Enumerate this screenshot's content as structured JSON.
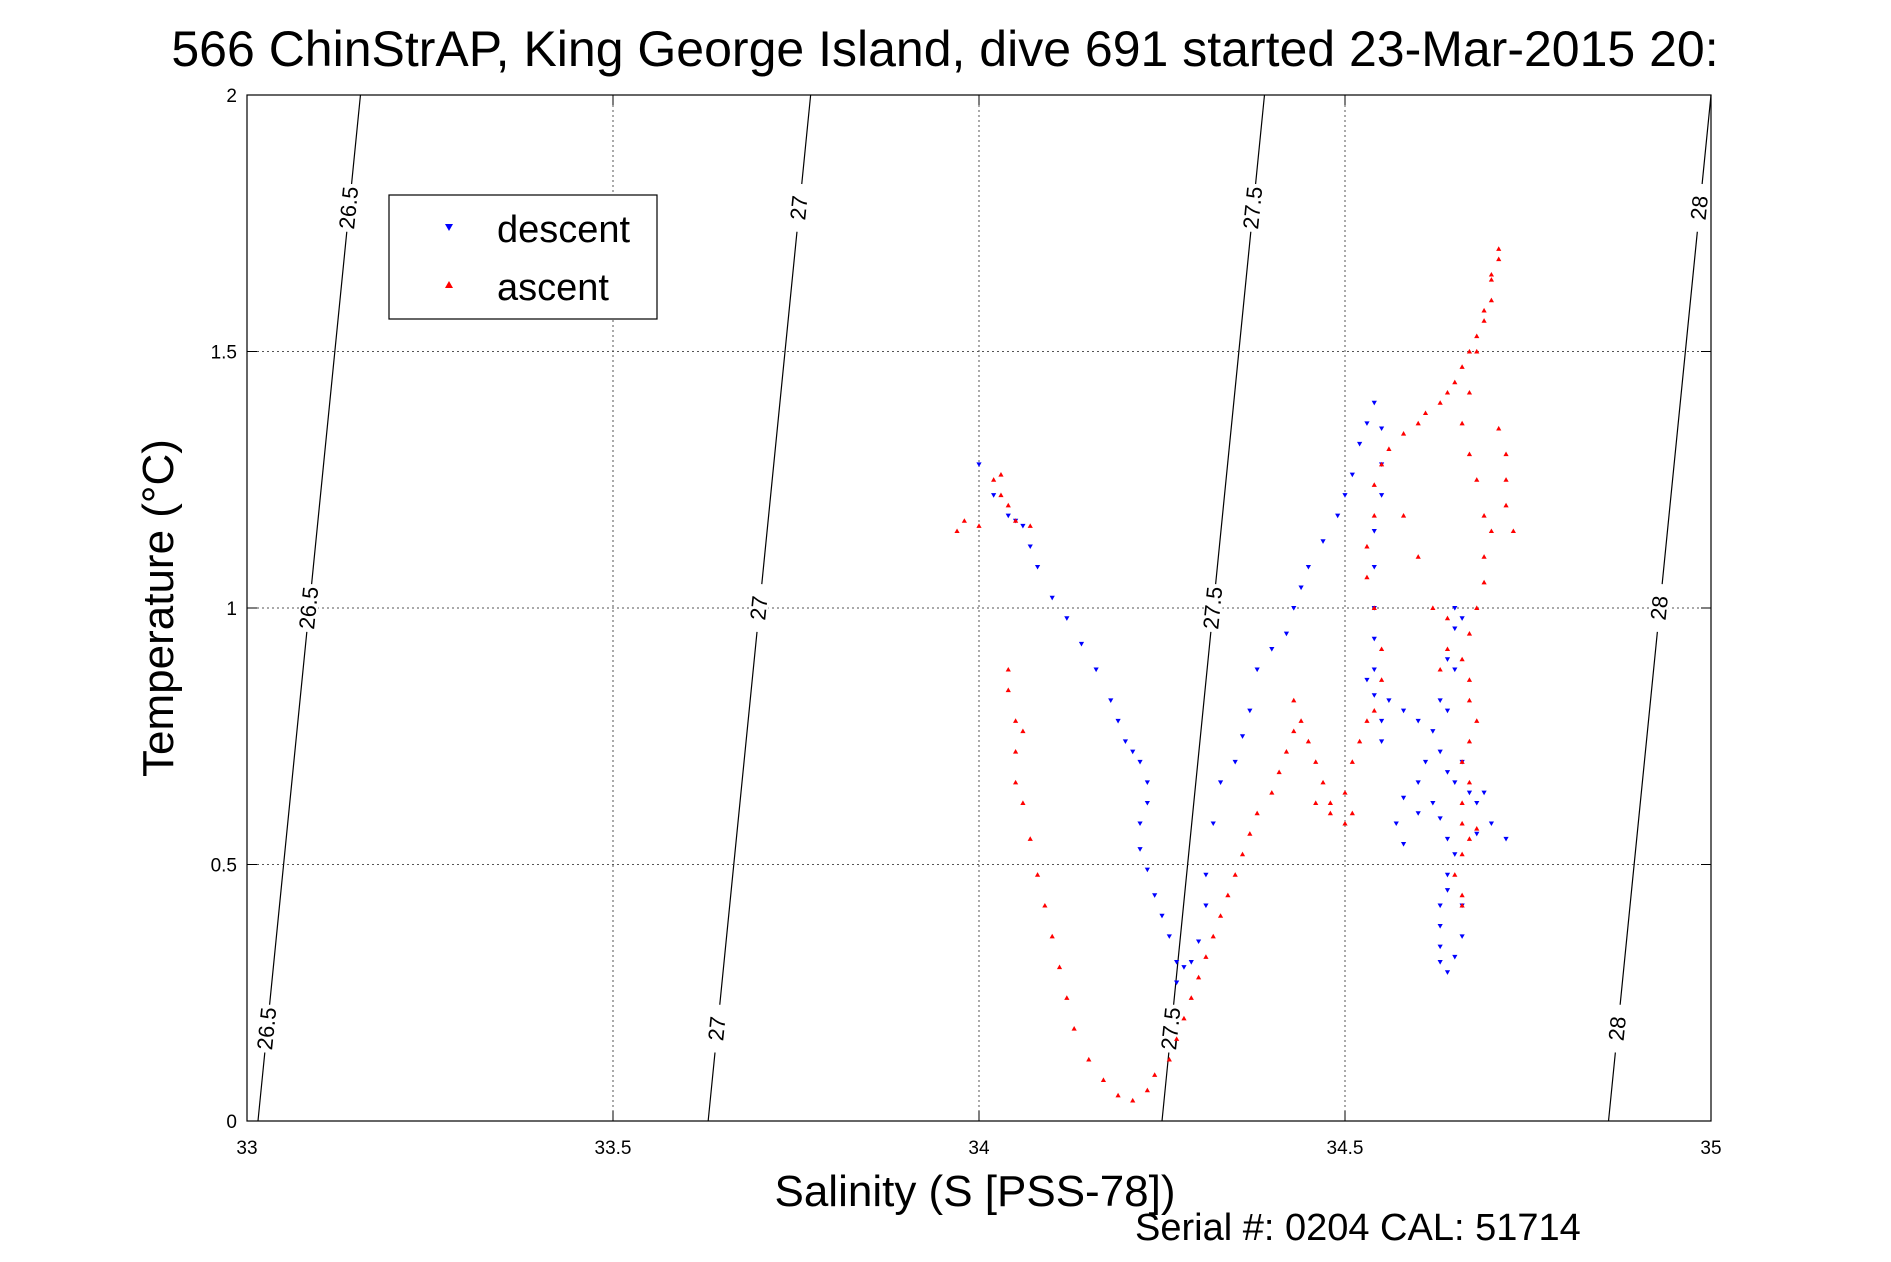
{
  "chart_data": {
    "type": "scatter",
    "title": "566 ChinStrAP, King George Island, dive 691 started 23-Mar-2015 20:",
    "xlabel": "Salinity (S [PSS-78])",
    "ylabel": "Temperature (°C)",
    "xlim": [
      33,
      35
    ],
    "ylim": [
      0,
      2
    ],
    "x_ticks": [
      "33",
      "33.5",
      "34",
      "34.5",
      "35"
    ],
    "y_ticks": [
      "0",
      "0.5",
      "1",
      "1.5",
      "2"
    ],
    "grid": true,
    "legend_position": "top-left",
    "footer": "Serial #: 0204  CAL: 51714",
    "density_contours": [
      {
        "label": "26.5",
        "x_at_t0": 33.015,
        "x_at_t2": 33.155
      },
      {
        "label": "27",
        "x_at_t0": 33.63,
        "x_at_t2": 33.77
      },
      {
        "label": "27.5",
        "x_at_t0": 34.25,
        "x_at_t2": 34.39
      },
      {
        "label": "28",
        "x_at_t0": 34.86,
        "x_at_t2": 35.0
      }
    ],
    "series": [
      {
        "name": "descent",
        "color": "#0000ff",
        "marker": "triangle-down",
        "points": [
          [
            34.0,
            1.28
          ],
          [
            34.02,
            1.22
          ],
          [
            34.04,
            1.18
          ],
          [
            34.05,
            1.17
          ],
          [
            34.06,
            1.16
          ],
          [
            34.07,
            1.12
          ],
          [
            34.08,
            1.08
          ],
          [
            34.1,
            1.02
          ],
          [
            34.12,
            0.98
          ],
          [
            34.14,
            0.93
          ],
          [
            34.16,
            0.88
          ],
          [
            34.18,
            0.82
          ],
          [
            34.19,
            0.78
          ],
          [
            34.2,
            0.74
          ],
          [
            34.21,
            0.72
          ],
          [
            34.22,
            0.7
          ],
          [
            34.23,
            0.66
          ],
          [
            34.23,
            0.62
          ],
          [
            34.22,
            0.58
          ],
          [
            34.22,
            0.53
          ],
          [
            34.23,
            0.49
          ],
          [
            34.24,
            0.44
          ],
          [
            34.25,
            0.4
          ],
          [
            34.26,
            0.36
          ],
          [
            34.27,
            0.31
          ],
          [
            34.27,
            0.27
          ],
          [
            34.28,
            0.3
          ],
          [
            34.29,
            0.31
          ],
          [
            34.3,
            0.35
          ],
          [
            34.31,
            0.42
          ],
          [
            34.31,
            0.48
          ],
          [
            34.32,
            0.58
          ],
          [
            34.33,
            0.66
          ],
          [
            34.35,
            0.7
          ],
          [
            34.36,
            0.75
          ],
          [
            34.37,
            0.8
          ],
          [
            34.38,
            0.88
          ],
          [
            34.4,
            0.92
          ],
          [
            34.42,
            0.95
          ],
          [
            34.43,
            1.0
          ],
          [
            34.44,
            1.04
          ],
          [
            34.45,
            1.08
          ],
          [
            34.47,
            1.13
          ],
          [
            34.49,
            1.18
          ],
          [
            34.5,
            1.22
          ],
          [
            34.51,
            1.26
          ],
          [
            34.52,
            1.32
          ],
          [
            34.53,
            1.36
          ],
          [
            34.54,
            1.4
          ],
          [
            34.55,
            1.35
          ],
          [
            34.55,
            1.28
          ],
          [
            34.55,
            1.22
          ],
          [
            34.54,
            1.15
          ],
          [
            34.54,
            1.08
          ],
          [
            34.54,
            1.0
          ],
          [
            34.54,
            0.94
          ],
          [
            34.54,
            0.88
          ],
          [
            34.54,
            0.83
          ],
          [
            34.55,
            0.78
          ],
          [
            34.55,
            0.74
          ],
          [
            34.53,
            0.86
          ],
          [
            34.56,
            0.82
          ],
          [
            34.58,
            0.8
          ],
          [
            34.6,
            0.78
          ],
          [
            34.62,
            0.76
          ],
          [
            34.63,
            0.82
          ],
          [
            34.64,
            0.9
          ],
          [
            34.65,
            0.96
          ],
          [
            34.65,
            1.0
          ],
          [
            34.66,
            0.98
          ],
          [
            34.65,
            0.88
          ],
          [
            34.64,
            0.8
          ],
          [
            34.63,
            0.72
          ],
          [
            34.64,
            0.68
          ],
          [
            34.65,
            0.66
          ],
          [
            34.6,
            0.66
          ],
          [
            34.58,
            0.63
          ],
          [
            34.57,
            0.58
          ],
          [
            34.58,
            0.54
          ],
          [
            34.6,
            0.6
          ],
          [
            34.62,
            0.62
          ],
          [
            34.63,
            0.59
          ],
          [
            34.64,
            0.55
          ],
          [
            34.65,
            0.52
          ],
          [
            34.64,
            0.48
          ],
          [
            34.64,
            0.45
          ],
          [
            34.63,
            0.42
          ],
          [
            34.63,
            0.38
          ],
          [
            34.63,
            0.34
          ],
          [
            34.63,
            0.31
          ],
          [
            34.64,
            0.29
          ],
          [
            34.65,
            0.32
          ],
          [
            34.66,
            0.36
          ],
          [
            34.66,
            0.42
          ],
          [
            34.68,
            0.56
          ],
          [
            34.7,
            0.58
          ],
          [
            34.72,
            0.55
          ],
          [
            34.61,
            0.7
          ],
          [
            34.66,
            0.7
          ],
          [
            34.67,
            0.64
          ],
          [
            34.68,
            0.62
          ],
          [
            34.69,
            0.64
          ]
        ]
      },
      {
        "name": "ascent",
        "color": "#ff0000",
        "marker": "triangle-up",
        "points": [
          [
            33.97,
            1.15
          ],
          [
            33.98,
            1.17
          ],
          [
            34.0,
            1.16
          ],
          [
            34.02,
            1.25
          ],
          [
            34.03,
            1.26
          ],
          [
            34.03,
            1.22
          ],
          [
            34.04,
            1.2
          ],
          [
            34.05,
            1.17
          ],
          [
            34.07,
            1.16
          ],
          [
            34.04,
            0.88
          ],
          [
            34.04,
            0.84
          ],
          [
            34.05,
            0.78
          ],
          [
            34.05,
            0.72
          ],
          [
            34.06,
            0.76
          ],
          [
            34.05,
            0.66
          ],
          [
            34.06,
            0.62
          ],
          [
            34.07,
            0.55
          ],
          [
            34.08,
            0.48
          ],
          [
            34.09,
            0.42
          ],
          [
            34.1,
            0.36
          ],
          [
            34.11,
            0.3
          ],
          [
            34.12,
            0.24
          ],
          [
            34.13,
            0.18
          ],
          [
            34.15,
            0.12
          ],
          [
            34.17,
            0.08
          ],
          [
            34.19,
            0.05
          ],
          [
            34.21,
            0.04
          ],
          [
            34.23,
            0.06
          ],
          [
            34.24,
            0.09
          ],
          [
            34.26,
            0.12
          ],
          [
            34.27,
            0.16
          ],
          [
            34.28,
            0.2
          ],
          [
            34.29,
            0.24
          ],
          [
            34.3,
            0.28
          ],
          [
            34.31,
            0.32
          ],
          [
            34.32,
            0.36
          ],
          [
            34.33,
            0.4
          ],
          [
            34.34,
            0.44
          ],
          [
            34.35,
            0.48
          ],
          [
            34.36,
            0.52
          ],
          [
            34.37,
            0.56
          ],
          [
            34.38,
            0.6
          ],
          [
            34.4,
            0.64
          ],
          [
            34.41,
            0.68
          ],
          [
            34.42,
            0.72
          ],
          [
            34.43,
            0.76
          ],
          [
            34.43,
            0.82
          ],
          [
            34.44,
            0.78
          ],
          [
            34.45,
            0.74
          ],
          [
            34.46,
            0.7
          ],
          [
            34.47,
            0.66
          ],
          [
            34.48,
            0.62
          ],
          [
            34.46,
            0.62
          ],
          [
            34.48,
            0.6
          ],
          [
            34.5,
            0.58
          ],
          [
            34.51,
            0.6
          ],
          [
            34.5,
            0.64
          ],
          [
            34.51,
            0.7
          ],
          [
            34.52,
            0.74
          ],
          [
            34.53,
            0.78
          ],
          [
            34.54,
            0.8
          ],
          [
            34.55,
            0.86
          ],
          [
            34.55,
            0.92
          ],
          [
            34.54,
            1.0
          ],
          [
            34.53,
            1.06
          ],
          [
            34.53,
            1.12
          ],
          [
            34.54,
            1.18
          ],
          [
            34.54,
            1.24
          ],
          [
            34.55,
            1.28
          ],
          [
            34.56,
            1.31
          ],
          [
            34.58,
            1.34
          ],
          [
            34.6,
            1.36
          ],
          [
            34.61,
            1.38
          ],
          [
            34.63,
            1.4
          ],
          [
            34.64,
            1.42
          ],
          [
            34.65,
            1.44
          ],
          [
            34.66,
            1.47
          ],
          [
            34.67,
            1.5
          ],
          [
            34.68,
            1.53
          ],
          [
            34.69,
            1.56
          ],
          [
            34.7,
            1.6
          ],
          [
            34.7,
            1.64
          ],
          [
            34.71,
            1.68
          ],
          [
            34.71,
            1.7
          ],
          [
            34.7,
            1.65
          ],
          [
            34.69,
            1.58
          ],
          [
            34.68,
            1.5
          ],
          [
            34.67,
            1.42
          ],
          [
            34.66,
            1.36
          ],
          [
            34.67,
            1.3
          ],
          [
            34.68,
            1.25
          ],
          [
            34.69,
            1.18
          ],
          [
            34.7,
            1.15
          ],
          [
            34.69,
            1.1
          ],
          [
            34.69,
            1.05
          ],
          [
            34.68,
            1.0
          ],
          [
            34.67,
            0.95
          ],
          [
            34.66,
            0.9
          ],
          [
            34.67,
            0.86
          ],
          [
            34.67,
            0.82
          ],
          [
            34.68,
            0.78
          ],
          [
            34.67,
            0.74
          ],
          [
            34.66,
            0.7
          ],
          [
            34.67,
            0.66
          ],
          [
            34.66,
            0.62
          ],
          [
            34.66,
            0.58
          ],
          [
            34.67,
            0.55
          ],
          [
            34.68,
            0.57
          ],
          [
            34.66,
            0.52
          ],
          [
            34.65,
            0.48
          ],
          [
            34.66,
            0.44
          ],
          [
            34.66,
            0.42
          ],
          [
            34.72,
            1.25
          ],
          [
            34.72,
            1.3
          ],
          [
            34.71,
            1.35
          ],
          [
            34.72,
            1.2
          ],
          [
            34.73,
            1.15
          ],
          [
            34.58,
            1.18
          ],
          [
            34.6,
            1.1
          ],
          [
            34.62,
            1.0
          ],
          [
            34.64,
            0.98
          ],
          [
            34.64,
            0.92
          ],
          [
            34.63,
            0.88
          ]
        ]
      }
    ]
  }
}
